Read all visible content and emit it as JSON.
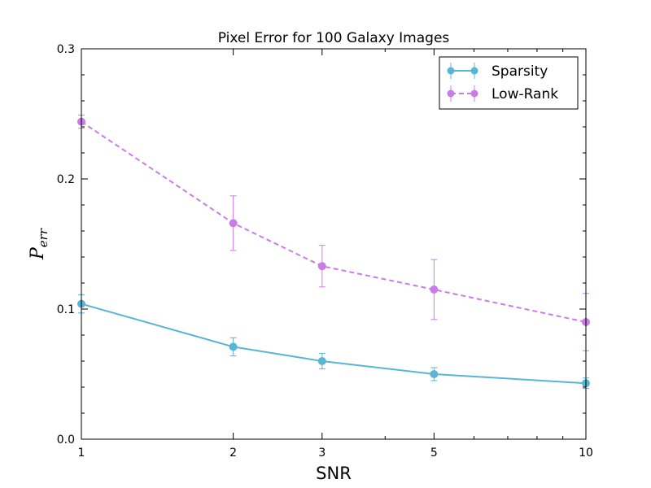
{
  "chart_data": {
    "type": "line",
    "title": "Pixel Error for 100 Galaxy Images",
    "xlabel": "SNR",
    "ylabel_main": "P",
    "ylabel_sub": "err",
    "x_scale": "log",
    "x": [
      1,
      2,
      3,
      5,
      10
    ],
    "x_tick_labels": [
      "1",
      "2",
      "3",
      "5",
      "10"
    ],
    "xlim": [
      1,
      10
    ],
    "ylim": [
      0.0,
      0.3
    ],
    "y_ticks": [
      0.0,
      0.1,
      0.2,
      0.3
    ],
    "y_tick_labels": [
      "0.0",
      "0.1",
      "0.2",
      "0.3"
    ],
    "grid": false,
    "legend_position": "top-right",
    "series": [
      {
        "name": "Sparsity",
        "color": "#5ab4d4",
        "line_style": "solid",
        "marker": "circle",
        "values": [
          0.104,
          0.071,
          0.06,
          0.05,
          0.043
        ],
        "errors": [
          0.007,
          0.007,
          0.006,
          0.005,
          0.004
        ]
      },
      {
        "name": "Low-Rank",
        "color": "#c97ce8",
        "line_style": "dashed",
        "marker": "circle",
        "values": [
          0.244,
          0.166,
          0.133,
          0.115,
          0.09
        ],
        "errors": [
          0.005,
          0.021,
          0.016,
          0.023,
          0.022
        ]
      }
    ]
  }
}
